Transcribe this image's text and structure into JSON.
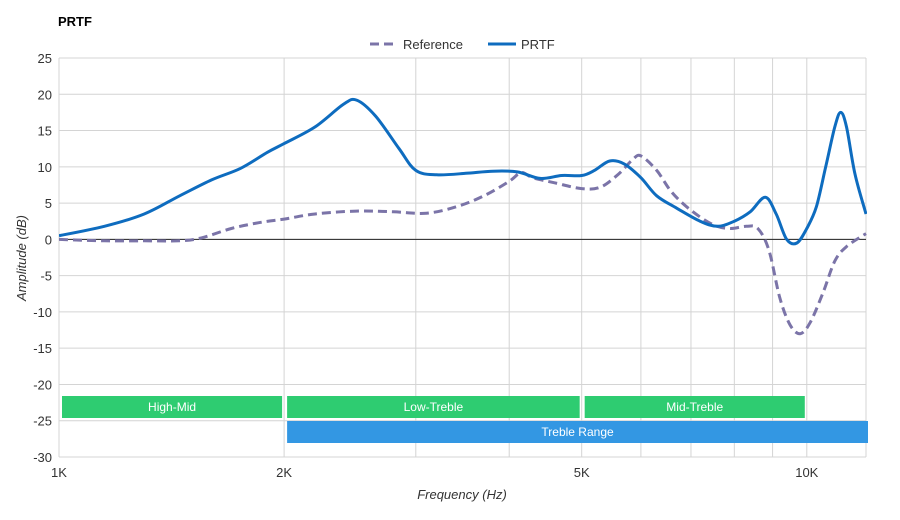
{
  "chart_data": {
    "type": "line",
    "title": "PRTF",
    "xlabel": "Frequency (Hz)",
    "ylabel": "Amplitude (dB)",
    "x_scale": "log",
    "xlim": [
      1000,
      12000
    ],
    "ylim": [
      -30,
      25
    ],
    "y_ticks": [
      25,
      20,
      15,
      10,
      5,
      0,
      -5,
      -10,
      -15,
      -20,
      -25,
      -30
    ],
    "x_ticks": [
      {
        "value": 1000,
        "label": "1K"
      },
      {
        "value": 2000,
        "label": "2K"
      },
      {
        "value": 5000,
        "label": "5K"
      },
      {
        "value": 10000,
        "label": "10K"
      }
    ],
    "x_gridlines": [
      1000,
      2000,
      3000,
      4000,
      5000,
      6000,
      7000,
      8000,
      9000,
      10000,
      12000
    ],
    "grid": true,
    "legend": {
      "position": "top-center"
    },
    "series": [
      {
        "name": "Reference",
        "color": "#7b74a8",
        "style": "dashed",
        "points": [
          [
            1000,
            0
          ],
          [
            1150,
            -0.2
          ],
          [
            1300,
            -0.2
          ],
          [
            1450,
            -0.2
          ],
          [
            1550,
            0.2
          ],
          [
            1700,
            1.5
          ],
          [
            1850,
            2.3
          ],
          [
            2000,
            2.8
          ],
          [
            2200,
            3.5
          ],
          [
            2500,
            3.9
          ],
          [
            2800,
            3.8
          ],
          [
            3100,
            3.6
          ],
          [
            3400,
            4.5
          ],
          [
            3700,
            6.0
          ],
          [
            4000,
            8.0
          ],
          [
            4150,
            9.2
          ],
          [
            4300,
            8.5
          ],
          [
            4600,
            7.8
          ],
          [
            5000,
            7.0
          ],
          [
            5300,
            7.2
          ],
          [
            5600,
            9.0
          ],
          [
            5850,
            11.0
          ],
          [
            6000,
            11.5
          ],
          [
            6300,
            9.5
          ],
          [
            6600,
            6.5
          ],
          [
            7000,
            4.0
          ],
          [
            7500,
            2.0
          ],
          [
            7900,
            1.5
          ],
          [
            8300,
            1.8
          ],
          [
            8600,
            1.5
          ],
          [
            8900,
            -1.5
          ],
          [
            9200,
            -8.0
          ],
          [
            9500,
            -11.8
          ],
          [
            9800,
            -13.0
          ],
          [
            10100,
            -11.5
          ],
          [
            10500,
            -7.5
          ],
          [
            10900,
            -3.0
          ],
          [
            11300,
            -1.0
          ],
          [
            12000,
            0.8
          ]
        ]
      },
      {
        "name": "PRTF",
        "color": "#0e6cbf",
        "style": "solid",
        "points": [
          [
            1000,
            0.5
          ],
          [
            1150,
            1.8
          ],
          [
            1300,
            3.5
          ],
          [
            1450,
            6.0
          ],
          [
            1600,
            8.2
          ],
          [
            1750,
            9.8
          ],
          [
            1900,
            12.0
          ],
          [
            2000,
            13.2
          ],
          [
            2200,
            15.5
          ],
          [
            2400,
            18.6
          ],
          [
            2500,
            19.2
          ],
          [
            2650,
            17.0
          ],
          [
            2850,
            12.5
          ],
          [
            3000,
            9.5
          ],
          [
            3200,
            8.9
          ],
          [
            3500,
            9.1
          ],
          [
            3800,
            9.4
          ],
          [
            4100,
            9.3
          ],
          [
            4400,
            8.4
          ],
          [
            4700,
            8.8
          ],
          [
            5000,
            8.8
          ],
          [
            5200,
            9.5
          ],
          [
            5450,
            10.8
          ],
          [
            5700,
            10.4
          ],
          [
            6000,
            8.5
          ],
          [
            6300,
            6.0
          ],
          [
            6700,
            4.3
          ],
          [
            7200,
            2.5
          ],
          [
            7600,
            1.8
          ],
          [
            8000,
            2.5
          ],
          [
            8400,
            3.8
          ],
          [
            8800,
            5.8
          ],
          [
            9100,
            3.5
          ],
          [
            9400,
            0.0
          ],
          [
            9700,
            -0.5
          ],
          [
            10000,
            1.5
          ],
          [
            10300,
            4.5
          ],
          [
            10600,
            10.0
          ],
          [
            10900,
            15.5
          ],
          [
            11100,
            17.5
          ],
          [
            11300,
            15.5
          ],
          [
            11600,
            9.0
          ],
          [
            12000,
            3.5
          ]
        ]
      }
    ],
    "bands": [
      {
        "label": "High-Mid",
        "from": 1000,
        "to": 2000,
        "color": "#2ecc71",
        "row": 0
      },
      {
        "label": "Low-Treble",
        "from": 2000,
        "to": 5000,
        "color": "#2ecc71",
        "row": 0
      },
      {
        "label": "Mid-Treble",
        "from": 5000,
        "to": 10000,
        "color": "#2ecc71",
        "row": 0
      },
      {
        "label": "Treble Range",
        "from": 2000,
        "to": 12000,
        "color": "#3397e3",
        "row": 1
      }
    ],
    "zero_line": true
  }
}
